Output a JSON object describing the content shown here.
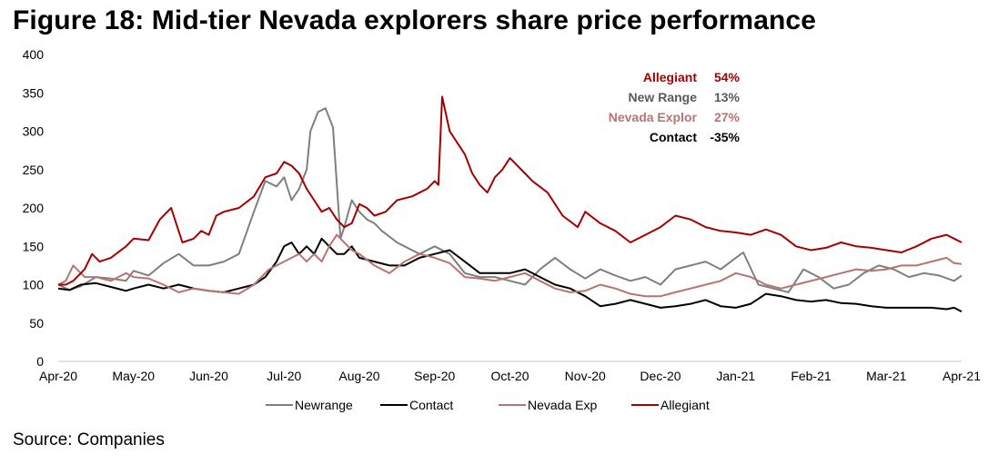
{
  "title": "Figure 18: Mid-tier Nevada explorers share price performance",
  "source": "Source: Companies",
  "chart_data": {
    "type": "line",
    "title": "Figure 18: Mid-tier Nevada explorers share price performance",
    "xlabel": "",
    "ylabel": "",
    "ylim": [
      0,
      400
    ],
    "yticks": [
      0,
      50,
      100,
      150,
      200,
      250,
      300,
      350,
      400
    ],
    "xticks": [
      "Apr-20",
      "May-20",
      "Jun-20",
      "Jul-20",
      "Aug-20",
      "Sep-20",
      "Oct-20",
      "Nov-20",
      "Dec-20",
      "Jan-21",
      "Feb-21",
      "Mar-21",
      "Apr-21"
    ],
    "grid": false,
    "legend_position": "bottom",
    "x_unit": "months since Apr-20",
    "series": [
      {
        "name": "Newrange",
        "color": "#7f7f7f",
        "x": [
          0,
          0.15,
          0.3,
          0.5,
          0.7,
          0.9,
          1.0,
          1.2,
          1.4,
          1.6,
          1.8,
          2.0,
          2.2,
          2.4,
          2.6,
          2.75,
          2.9,
          3.0,
          3.1,
          3.2,
          3.3,
          3.35,
          3.45,
          3.55,
          3.65,
          3.75,
          3.8,
          3.9,
          4.0,
          4.1,
          4.2,
          4.3,
          4.5,
          4.6,
          4.8,
          5.0,
          5.2,
          5.4,
          5.6,
          5.8,
          6.0,
          6.2,
          6.4,
          6.6,
          6.8,
          7.0,
          7.2,
          7.4,
          7.6,
          7.8,
          8.0,
          8.2,
          8.4,
          8.6,
          8.8,
          9.0,
          9.1,
          9.3,
          9.5,
          9.7,
          9.9,
          10.1,
          10.3,
          10.5,
          10.7,
          10.9,
          11.1,
          11.3,
          11.5,
          11.7,
          11.9,
          12.0
        ],
        "values": [
          100,
          93,
          98,
          110,
          108,
          105,
          118,
          112,
          128,
          140,
          125,
          125,
          130,
          140,
          195,
          235,
          228,
          240,
          210,
          225,
          250,
          300,
          325,
          330,
          305,
          160,
          175,
          210,
          195,
          185,
          180,
          170,
          155,
          150,
          140,
          150,
          140,
          115,
          110,
          110,
          105,
          100,
          120,
          135,
          120,
          108,
          120,
          112,
          105,
          110,
          100,
          120,
          125,
          130,
          120,
          135,
          142,
          100,
          95,
          90,
          120,
          110,
          95,
          100,
          115,
          125,
          120,
          110,
          115,
          112,
          105,
          112
        ]
      },
      {
        "name": "Contact",
        "color": "#000000",
        "x": [
          0,
          0.15,
          0.3,
          0.5,
          0.7,
          0.9,
          1.0,
          1.2,
          1.4,
          1.6,
          1.8,
          2.0,
          2.2,
          2.4,
          2.6,
          2.75,
          2.9,
          3.0,
          3.1,
          3.2,
          3.3,
          3.4,
          3.5,
          3.6,
          3.7,
          3.8,
          3.9,
          4.0,
          4.2,
          4.4,
          4.6,
          4.8,
          5.0,
          5.2,
          5.4,
          5.6,
          5.8,
          6.0,
          6.2,
          6.4,
          6.6,
          6.8,
          7.0,
          7.2,
          7.4,
          7.6,
          7.8,
          8.0,
          8.2,
          8.4,
          8.6,
          8.8,
          9.0,
          9.2,
          9.4,
          9.6,
          9.8,
          10.0,
          10.2,
          10.4,
          10.6,
          10.8,
          11.0,
          11.2,
          11.4,
          11.6,
          11.8,
          11.9,
          12.0
        ],
        "values": [
          95,
          93,
          100,
          102,
          97,
          92,
          95,
          100,
          95,
          100,
          95,
          92,
          90,
          95,
          100,
          110,
          130,
          150,
          155,
          140,
          150,
          140,
          160,
          150,
          140,
          140,
          150,
          135,
          130,
          125,
          125,
          135,
          140,
          145,
          130,
          115,
          115,
          115,
          120,
          110,
          100,
          95,
          85,
          72,
          75,
          80,
          75,
          70,
          72,
          75,
          80,
          72,
          70,
          75,
          88,
          85,
          80,
          78,
          80,
          76,
          75,
          72,
          70,
          70,
          70,
          70,
          68,
          70,
          65
        ]
      },
      {
        "name": "Nevada Exp",
        "color": "#b87373",
        "x": [
          0,
          0.1,
          0.2,
          0.35,
          0.5,
          0.7,
          0.9,
          1.0,
          1.2,
          1.4,
          1.6,
          1.8,
          2.0,
          2.2,
          2.4,
          2.6,
          2.8,
          3.0,
          3.1,
          3.2,
          3.3,
          3.4,
          3.5,
          3.6,
          3.7,
          3.8,
          3.9,
          4.0,
          4.2,
          4.4,
          4.6,
          4.8,
          5.0,
          5.2,
          5.4,
          5.6,
          5.8,
          6.0,
          6.2,
          6.4,
          6.6,
          6.8,
          7.0,
          7.2,
          7.4,
          7.6,
          7.8,
          8.0,
          8.2,
          8.4,
          8.6,
          8.8,
          9.0,
          9.2,
          9.4,
          9.6,
          9.8,
          10.0,
          10.2,
          10.4,
          10.6,
          10.8,
          11.0,
          11.2,
          11.4,
          11.6,
          11.8,
          11.9,
          12.0
        ],
        "values": [
          100,
          105,
          125,
          110,
          110,
          105,
          115,
          110,
          108,
          100,
          90,
          95,
          92,
          90,
          88,
          100,
          120,
          130,
          135,
          140,
          130,
          140,
          130,
          150,
          165,
          155,
          145,
          140,
          125,
          115,
          130,
          140,
          135,
          128,
          110,
          108,
          105,
          110,
          115,
          105,
          95,
          90,
          92,
          100,
          95,
          88,
          85,
          85,
          90,
          95,
          100,
          105,
          115,
          110,
          100,
          95,
          100,
          105,
          110,
          115,
          120,
          118,
          120,
          125,
          125,
          130,
          135,
          128,
          127
        ]
      },
      {
        "name": "Allegiant",
        "color": "#a50000",
        "x": [
          0,
          0.1,
          0.2,
          0.35,
          0.45,
          0.55,
          0.7,
          0.9,
          1.0,
          1.2,
          1.35,
          1.5,
          1.65,
          1.8,
          1.9,
          2.0,
          2.1,
          2.2,
          2.4,
          2.6,
          2.75,
          2.9,
          3.0,
          3.1,
          3.2,
          3.3,
          3.4,
          3.5,
          3.6,
          3.7,
          3.8,
          3.9,
          4.0,
          4.1,
          4.2,
          4.35,
          4.5,
          4.7,
          4.9,
          5.0,
          5.05,
          5.1,
          5.2,
          5.3,
          5.4,
          5.5,
          5.6,
          5.7,
          5.8,
          5.9,
          6.0,
          6.1,
          6.2,
          6.3,
          6.5,
          6.7,
          6.9,
          7.0,
          7.2,
          7.4,
          7.6,
          7.8,
          8.0,
          8.2,
          8.4,
          8.6,
          8.8,
          9.0,
          9.2,
          9.4,
          9.6,
          9.8,
          10.0,
          10.2,
          10.4,
          10.6,
          10.8,
          11.0,
          11.2,
          11.4,
          11.6,
          11.8,
          11.9,
          12.0
        ],
        "values": [
          100,
          100,
          105,
          120,
          140,
          130,
          135,
          150,
          160,
          158,
          185,
          200,
          155,
          160,
          170,
          165,
          190,
          195,
          200,
          215,
          240,
          245,
          260,
          255,
          245,
          225,
          210,
          195,
          200,
          185,
          175,
          180,
          205,
          200,
          190,
          195,
          210,
          215,
          225,
          235,
          230,
          345,
          300,
          285,
          270,
          245,
          230,
          220,
          240,
          250,
          265,
          255,
          245,
          235,
          220,
          190,
          175,
          195,
          180,
          170,
          155,
          165,
          175,
          190,
          185,
          175,
          170,
          168,
          165,
          172,
          165,
          150,
          145,
          148,
          155,
          150,
          148,
          145,
          142,
          150,
          160,
          165,
          160,
          155
        ]
      }
    ],
    "annotations": [
      {
        "label": "Allegiant",
        "value": "54%",
        "color": "#a50000"
      },
      {
        "label": "New Range",
        "value": "13%",
        "color": "#595959"
      },
      {
        "label": "Nevada Explor",
        "value": "27%",
        "color": "#b87373"
      },
      {
        "label": "Contact",
        "value": "-35%",
        "color": "#000000"
      }
    ]
  }
}
